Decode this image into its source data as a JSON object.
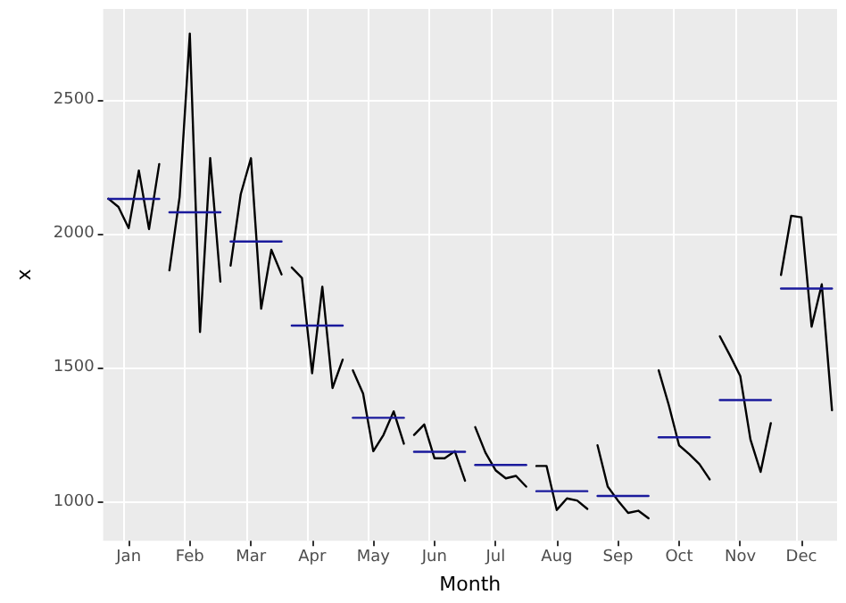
{
  "chart_data": {
    "type": "line",
    "xlabel": "Month",
    "ylabel": "x",
    "ylim": [
      855,
      2840
    ],
    "categories": [
      null,
      null,
      "Jan",
      null,
      null,
      null,
      null,
      null,
      "Feb",
      null,
      null,
      null,
      null,
      null,
      "Mar",
      null,
      null,
      null,
      null,
      null,
      "Apr",
      null,
      null,
      null,
      null,
      null,
      "May",
      null,
      null,
      null,
      null,
      null,
      "Jun",
      null,
      null,
      null,
      null,
      null,
      "Jul",
      null,
      null,
      null,
      null,
      null,
      "Aug",
      null,
      null,
      null,
      null,
      null,
      "Sep",
      null,
      null,
      null,
      null,
      null,
      "Oct",
      null,
      null,
      null,
      null,
      null,
      "Nov",
      null,
      null,
      null,
      null,
      null,
      "Dec",
      null,
      null,
      null
    ],
    "yticks": [
      1000,
      1500,
      2000,
      2500
    ],
    "grid": true,
    "marker": "none",
    "line_style": "solid",
    "series": [
      {
        "color": "#000000",
        "values": [
          2132,
          2101,
          2022,
          2237,
          2018,
          2261,
          null,
          null,
          null,
          null,
          null,
          null,
          null,
          null,
          null,
          null,
          null,
          null,
          null,
          null,
          null,
          null,
          null,
          null,
          null,
          null,
          null,
          null,
          null,
          null,
          null,
          null,
          null,
          null,
          null,
          null,
          null,
          null,
          null,
          null,
          null,
          null,
          null,
          null,
          null,
          null,
          null,
          null,
          null,
          null,
          null,
          null,
          null,
          null,
          null,
          null,
          null,
          null,
          null,
          null,
          null,
          null,
          null,
          null,
          null,
          null,
          null,
          null,
          null,
          null,
          null,
          null
        ]
      },
      {
        "color": "#000000",
        "values": [
          null,
          null,
          null,
          null,
          null,
          null,
          1864,
          2138,
          2748,
          1634,
          2283,
          1822,
          null,
          null,
          null,
          null,
          null,
          null,
          null,
          null,
          null,
          null,
          null,
          null,
          null,
          null,
          null,
          null,
          null,
          null,
          null,
          null,
          null,
          null,
          null,
          null,
          null,
          null,
          null,
          null,
          null,
          null,
          null,
          null,
          null,
          null,
          null,
          null,
          null,
          null,
          null,
          null,
          null,
          null,
          null,
          null,
          null,
          null,
          null,
          null,
          null,
          null,
          null,
          null,
          null,
          null,
          null,
          null,
          null,
          null,
          null,
          null
        ]
      },
      {
        "color": "#000000",
        "values": [
          null,
          null,
          null,
          null,
          null,
          null,
          null,
          null,
          null,
          null,
          null,
          null,
          1882,
          2149,
          2283,
          1721,
          1941,
          1849,
          null,
          null,
          null,
          null,
          null,
          null,
          null,
          null,
          null,
          null,
          null,
          null,
          null,
          null,
          null,
          null,
          null,
          null,
          null,
          null,
          null,
          null,
          null,
          null,
          null,
          null,
          null,
          null,
          null,
          null,
          null,
          null,
          null,
          null,
          null,
          null,
          null,
          null,
          null,
          null,
          null,
          null,
          null,
          null,
          null,
          null,
          null,
          null,
          null,
          null,
          null,
          null,
          null,
          null
        ]
      },
      {
        "color": "#000000",
        "values": [
          null,
          null,
          null,
          null,
          null,
          null,
          null,
          null,
          null,
          null,
          null,
          null,
          null,
          null,
          null,
          null,
          null,
          null,
          1875,
          1836,
          1480,
          1803,
          1425,
          1531,
          null,
          null,
          null,
          null,
          null,
          null,
          null,
          null,
          null,
          null,
          null,
          null,
          null,
          null,
          null,
          null,
          null,
          null,
          null,
          null,
          null,
          null,
          null,
          null,
          null,
          null,
          null,
          null,
          null,
          null,
          null,
          null,
          null,
          null,
          null,
          null,
          null,
          null,
          null,
          null,
          null,
          null,
          null,
          null,
          null,
          null,
          null,
          null
        ]
      },
      {
        "color": "#000000",
        "values": [
          null,
          null,
          null,
          null,
          null,
          null,
          null,
          null,
          null,
          null,
          null,
          null,
          null,
          null,
          null,
          null,
          null,
          null,
          null,
          null,
          null,
          null,
          null,
          null,
          1491,
          1404,
          1189,
          1250,
          1338,
          1217,
          null,
          null,
          null,
          null,
          null,
          null,
          null,
          null,
          null,
          null,
          null,
          null,
          null,
          null,
          null,
          null,
          null,
          null,
          null,
          null,
          null,
          null,
          null,
          null,
          null,
          null,
          null,
          null,
          null,
          null,
          null,
          null,
          null,
          null,
          null,
          null,
          null,
          null,
          null,
          null,
          null,
          null
        ]
      },
      {
        "color": "#000000",
        "values": [
          null,
          null,
          null,
          null,
          null,
          null,
          null,
          null,
          null,
          null,
          null,
          null,
          null,
          null,
          null,
          null,
          null,
          null,
          null,
          null,
          null,
          null,
          null,
          null,
          null,
          null,
          null,
          null,
          null,
          null,
          1250,
          1289,
          1163,
          1163,
          1189,
          1079,
          null,
          null,
          null,
          null,
          null,
          null,
          null,
          null,
          null,
          null,
          null,
          null,
          null,
          null,
          null,
          null,
          null,
          null,
          null,
          null,
          null,
          null,
          null,
          null,
          null,
          null,
          null,
          null,
          null,
          null,
          null,
          null,
          null,
          null,
          null,
          null
        ]
      },
      {
        "color": "#000000",
        "values": [
          null,
          null,
          null,
          null,
          null,
          null,
          null,
          null,
          null,
          null,
          null,
          null,
          null,
          null,
          null,
          null,
          null,
          null,
          null,
          null,
          null,
          null,
          null,
          null,
          null,
          null,
          null,
          null,
          null,
          null,
          null,
          null,
          null,
          null,
          null,
          null,
          1279,
          1184,
          1118,
          1088,
          1097,
          1057,
          null,
          null,
          null,
          null,
          null,
          null,
          null,
          null,
          null,
          null,
          null,
          null,
          null,
          null,
          null,
          null,
          null,
          null,
          null,
          null,
          null,
          null,
          null,
          null,
          null,
          null,
          null,
          null,
          null,
          null
        ]
      },
      {
        "color": "#000000",
        "values": [
          null,
          null,
          null,
          null,
          null,
          null,
          null,
          null,
          null,
          null,
          null,
          null,
          null,
          null,
          null,
          null,
          null,
          null,
          null,
          null,
          null,
          null,
          null,
          null,
          null,
          null,
          null,
          null,
          null,
          null,
          null,
          null,
          null,
          null,
          null,
          null,
          null,
          null,
          null,
          null,
          null,
          null,
          1134,
          1134,
          970,
          1013,
          1005,
          974,
          null,
          null,
          null,
          null,
          null,
          null,
          null,
          null,
          null,
          null,
          null,
          null,
          null,
          null,
          null,
          null,
          null,
          null,
          null,
          null,
          null,
          null,
          null,
          null
        ]
      },
      {
        "color": "#000000",
        "values": [
          null,
          null,
          null,
          null,
          null,
          null,
          null,
          null,
          null,
          null,
          null,
          null,
          null,
          null,
          null,
          null,
          null,
          null,
          null,
          null,
          null,
          null,
          null,
          null,
          null,
          null,
          null,
          null,
          null,
          null,
          null,
          null,
          null,
          null,
          null,
          null,
          null,
          null,
          null,
          null,
          null,
          null,
          null,
          null,
          null,
          null,
          null,
          null,
          1211,
          1057,
          1005,
          959,
          967,
          939,
          null,
          null,
          null,
          null,
          null,
          null,
          null,
          null,
          null,
          null,
          null,
          null,
          null,
          null,
          null,
          null,
          null,
          null
        ]
      },
      {
        "color": "#000000",
        "values": [
          null,
          null,
          null,
          null,
          null,
          null,
          null,
          null,
          null,
          null,
          null,
          null,
          null,
          null,
          null,
          null,
          null,
          null,
          null,
          null,
          null,
          null,
          null,
          null,
          null,
          null,
          null,
          null,
          null,
          null,
          null,
          null,
          null,
          null,
          null,
          null,
          null,
          null,
          null,
          null,
          null,
          null,
          null,
          null,
          null,
          null,
          null,
          null,
          null,
          null,
          null,
          null,
          null,
          null,
          1491,
          1360,
          1211,
          1178,
          1141,
          1084,
          null,
          null,
          null,
          null,
          null,
          null,
          null,
          null,
          null,
          null,
          null,
          null
        ]
      },
      {
        "color": "#000000",
        "values": [
          null,
          null,
          null,
          null,
          null,
          null,
          null,
          null,
          null,
          null,
          null,
          null,
          null,
          null,
          null,
          null,
          null,
          null,
          null,
          null,
          null,
          null,
          null,
          null,
          null,
          null,
          null,
          null,
          null,
          null,
          null,
          null,
          null,
          null,
          null,
          null,
          null,
          null,
          null,
          null,
          null,
          null,
          null,
          null,
          null,
          null,
          null,
          null,
          null,
          null,
          null,
          null,
          null,
          null,
          null,
          null,
          null,
          null,
          null,
          null,
          1618,
          1546,
          1470,
          1233,
          1112,
          1294,
          null,
          null,
          null,
          null,
          null,
          null
        ]
      },
      {
        "color": "#000000",
        "values": [
          null,
          null,
          null,
          null,
          null,
          null,
          null,
          null,
          null,
          null,
          null,
          null,
          null,
          null,
          null,
          null,
          null,
          null,
          null,
          null,
          null,
          null,
          null,
          null,
          null,
          null,
          null,
          null,
          null,
          null,
          null,
          null,
          null,
          null,
          null,
          null,
          null,
          null,
          null,
          null,
          null,
          null,
          null,
          null,
          null,
          null,
          null,
          null,
          null,
          null,
          null,
          null,
          null,
          null,
          null,
          null,
          null,
          null,
          null,
          null,
          null,
          null,
          null,
          null,
          null,
          null,
          1847,
          2068,
          2062,
          1654,
          1812,
          1342
        ]
      },
      {
        "color": "#1a1a9c",
        "values": [
          2131,
          2131,
          2131,
          2131,
          2131,
          2131,
          null,
          null,
          null,
          null,
          null,
          null,
          null,
          null,
          null,
          null,
          null,
          null,
          null,
          null,
          null,
          null,
          null,
          null,
          null,
          null,
          null,
          null,
          null,
          null,
          null,
          null,
          null,
          null,
          null,
          null,
          null,
          null,
          null,
          null,
          null,
          null,
          null,
          null,
          null,
          null,
          null,
          null,
          null,
          null,
          null,
          null,
          null,
          null,
          null,
          null,
          null,
          null,
          null,
          null,
          null,
          null,
          null,
          null,
          null,
          null,
          null,
          null,
          null,
          null,
          null,
          null
        ]
      },
      {
        "color": "#1a1a9c",
        "values": [
          null,
          null,
          null,
          null,
          null,
          null,
          2081,
          2081,
          2081,
          2081,
          2081,
          2081,
          null,
          null,
          null,
          null,
          null,
          null,
          null,
          null,
          null,
          null,
          null,
          null,
          null,
          null,
          null,
          null,
          null,
          null,
          null,
          null,
          null,
          null,
          null,
          null,
          null,
          null,
          null,
          null,
          null,
          null,
          null,
          null,
          null,
          null,
          null,
          null,
          null,
          null,
          null,
          null,
          null,
          null,
          null,
          null,
          null,
          null,
          null,
          null,
          null,
          null,
          null,
          null,
          null,
          null,
          null,
          null,
          null,
          null,
          null,
          null
        ]
      },
      {
        "color": "#1a1a9c",
        "values": [
          null,
          null,
          null,
          null,
          null,
          null,
          null,
          null,
          null,
          null,
          null,
          null,
          1972,
          1972,
          1972,
          1972,
          1972,
          1972,
          null,
          null,
          null,
          null,
          null,
          null,
          null,
          null,
          null,
          null,
          null,
          null,
          null,
          null,
          null,
          null,
          null,
          null,
          null,
          null,
          null,
          null,
          null,
          null,
          null,
          null,
          null,
          null,
          null,
          null,
          null,
          null,
          null,
          null,
          null,
          null,
          null,
          null,
          null,
          null,
          null,
          null,
          null,
          null,
          null,
          null,
          null,
          null,
          null,
          null,
          null,
          null,
          null,
          null
        ]
      },
      {
        "color": "#1a1a9c",
        "values": [
          null,
          null,
          null,
          null,
          null,
          null,
          null,
          null,
          null,
          null,
          null,
          null,
          null,
          null,
          null,
          null,
          null,
          null,
          1658,
          1658,
          1658,
          1658,
          1658,
          1658,
          null,
          null,
          null,
          null,
          null,
          null,
          null,
          null,
          null,
          null,
          null,
          null,
          null,
          null,
          null,
          null,
          null,
          null,
          null,
          null,
          null,
          null,
          null,
          null,
          null,
          null,
          null,
          null,
          null,
          null,
          null,
          null,
          null,
          null,
          null,
          null,
          null,
          null,
          null,
          null,
          null,
          null,
          null,
          null,
          null,
          null,
          null,
          null
        ]
      },
      {
        "color": "#1a1a9c",
        "values": [
          null,
          null,
          null,
          null,
          null,
          null,
          null,
          null,
          null,
          null,
          null,
          null,
          null,
          null,
          null,
          null,
          null,
          null,
          null,
          null,
          null,
          null,
          null,
          null,
          1314,
          1314,
          1314,
          1314,
          1314,
          1314,
          null,
          null,
          null,
          null,
          null,
          null,
          null,
          null,
          null,
          null,
          null,
          null,
          null,
          null,
          null,
          null,
          null,
          null,
          null,
          null,
          null,
          null,
          null,
          null,
          null,
          null,
          null,
          null,
          null,
          null,
          null,
          null,
          null,
          null,
          null,
          null,
          null,
          null,
          null,
          null,
          null,
          null
        ]
      },
      {
        "color": "#1a1a9c",
        "values": [
          null,
          null,
          null,
          null,
          null,
          null,
          null,
          null,
          null,
          null,
          null,
          null,
          null,
          null,
          null,
          null,
          null,
          null,
          null,
          null,
          null,
          null,
          null,
          null,
          null,
          null,
          null,
          null,
          null,
          null,
          1187,
          1187,
          1187,
          1187,
          1187,
          1187,
          null,
          null,
          null,
          null,
          null,
          null,
          null,
          null,
          null,
          null,
          null,
          null,
          null,
          null,
          null,
          null,
          null,
          null,
          null,
          null,
          null,
          null,
          null,
          null,
          null,
          null,
          null,
          null,
          null,
          null,
          null,
          null,
          null,
          null,
          null,
          null
        ]
      },
      {
        "color": "#1a1a9c",
        "values": [
          null,
          null,
          null,
          null,
          null,
          null,
          null,
          null,
          null,
          null,
          null,
          null,
          null,
          null,
          null,
          null,
          null,
          null,
          null,
          null,
          null,
          null,
          null,
          null,
          null,
          null,
          null,
          null,
          null,
          null,
          null,
          null,
          null,
          null,
          null,
          null,
          1138,
          1138,
          1138,
          1138,
          1138,
          1138,
          null,
          null,
          null,
          null,
          null,
          null,
          null,
          null,
          null,
          null,
          null,
          null,
          null,
          null,
          null,
          null,
          null,
          null,
          null,
          null,
          null,
          null,
          null,
          null,
          null,
          null,
          null,
          null,
          null,
          null
        ]
      },
      {
        "color": "#1a1a9c",
        "values": [
          null,
          null,
          null,
          null,
          null,
          null,
          null,
          null,
          null,
          null,
          null,
          null,
          null,
          null,
          null,
          null,
          null,
          null,
          null,
          null,
          null,
          null,
          null,
          null,
          null,
          null,
          null,
          null,
          null,
          null,
          null,
          null,
          null,
          null,
          null,
          null,
          null,
          null,
          null,
          null,
          null,
          null,
          1040,
          1040,
          1040,
          1040,
          1040,
          1040,
          null,
          null,
          null,
          null,
          null,
          null,
          null,
          null,
          null,
          null,
          null,
          null,
          null,
          null,
          null,
          null,
          null,
          null,
          null,
          null,
          null,
          null,
          null,
          null
        ]
      },
      {
        "color": "#1a1a9c",
        "values": [
          null,
          null,
          null,
          null,
          null,
          null,
          null,
          null,
          null,
          null,
          null,
          null,
          null,
          null,
          null,
          null,
          null,
          null,
          null,
          null,
          null,
          null,
          null,
          null,
          null,
          null,
          null,
          null,
          null,
          null,
          null,
          null,
          null,
          null,
          null,
          null,
          null,
          null,
          null,
          null,
          null,
          null,
          null,
          null,
          null,
          null,
          null,
          null,
          1022,
          1022,
          1022,
          1022,
          1022,
          1022,
          null,
          null,
          null,
          null,
          null,
          null,
          null,
          null,
          null,
          null,
          null,
          null,
          null,
          null,
          null,
          null,
          null,
          null
        ]
      },
      {
        "color": "#1a1a9c",
        "values": [
          null,
          null,
          null,
          null,
          null,
          null,
          null,
          null,
          null,
          null,
          null,
          null,
          null,
          null,
          null,
          null,
          null,
          null,
          null,
          null,
          null,
          null,
          null,
          null,
          null,
          null,
          null,
          null,
          null,
          null,
          null,
          null,
          null,
          null,
          null,
          null,
          null,
          null,
          null,
          null,
          null,
          null,
          null,
          null,
          null,
          null,
          null,
          null,
          null,
          null,
          null,
          null,
          null,
          null,
          1241,
          1241,
          1241,
          1241,
          1241,
          1241,
          null,
          null,
          null,
          null,
          null,
          null,
          null,
          null,
          null,
          null,
          null,
          null
        ]
      },
      {
        "color": "#1a1a9c",
        "values": [
          null,
          null,
          null,
          null,
          null,
          null,
          null,
          null,
          null,
          null,
          null,
          null,
          null,
          null,
          null,
          null,
          null,
          null,
          null,
          null,
          null,
          null,
          null,
          null,
          null,
          null,
          null,
          null,
          null,
          null,
          null,
          null,
          null,
          null,
          null,
          null,
          null,
          null,
          null,
          null,
          null,
          null,
          null,
          null,
          null,
          null,
          null,
          null,
          null,
          null,
          null,
          null,
          null,
          null,
          null,
          null,
          null,
          null,
          null,
          null,
          1380,
          1380,
          1380,
          1380,
          1380,
          1380,
          null,
          null,
          null,
          null,
          null,
          null
        ]
      },
      {
        "color": "#1a1a9c",
        "values": [
          null,
          null,
          null,
          null,
          null,
          null,
          null,
          null,
          null,
          null,
          null,
          null,
          null,
          null,
          null,
          null,
          null,
          null,
          null,
          null,
          null,
          null,
          null,
          null,
          null,
          null,
          null,
          null,
          null,
          null,
          null,
          null,
          null,
          null,
          null,
          null,
          null,
          null,
          null,
          null,
          null,
          null,
          null,
          null,
          null,
          null,
          null,
          null,
          null,
          null,
          null,
          null,
          null,
          null,
          null,
          null,
          null,
          null,
          null,
          null,
          null,
          null,
          null,
          null,
          null,
          null,
          1796,
          1796,
          1796,
          1796,
          1796,
          1796
        ]
      }
    ]
  }
}
